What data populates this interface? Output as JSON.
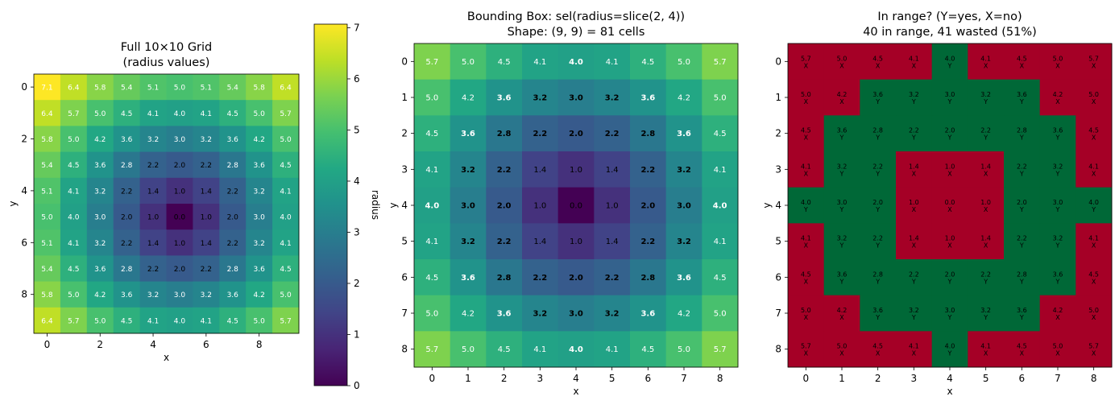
{
  "chart_data": [
    {
      "type": "heatmap",
      "title": "Full 10×10 Grid\n(radius values)",
      "xlabel": "x",
      "ylabel": "y",
      "colorbar_label": "radius",
      "xticks": [
        0,
        2,
        4,
        6,
        8
      ],
      "yticks": [
        0,
        2,
        4,
        6,
        8
      ],
      "colorbar_ticks": [
        0,
        1,
        2,
        3,
        4,
        5,
        6,
        7
      ],
      "colormap": "viridis",
      "vmin": 0,
      "vmax": 7.07,
      "values": [
        [
          "7.1",
          "6.4",
          "5.8",
          "5.4",
          "5.1",
          "5.0",
          "5.1",
          "5.4",
          "5.8",
          "6.4"
        ],
        [
          "6.4",
          "5.7",
          "5.0",
          "4.5",
          "4.1",
          "4.0",
          "4.1",
          "4.5",
          "5.0",
          "5.7"
        ],
        [
          "5.8",
          "5.0",
          "4.2",
          "3.6",
          "3.2",
          "3.0",
          "3.2",
          "3.6",
          "4.2",
          "5.0"
        ],
        [
          "5.4",
          "4.5",
          "3.6",
          "2.8",
          "2.2",
          "2.0",
          "2.2",
          "2.8",
          "3.6",
          "4.5"
        ],
        [
          "5.1",
          "4.1",
          "3.2",
          "2.2",
          "1.4",
          "1.0",
          "1.4",
          "2.2",
          "3.2",
          "4.1"
        ],
        [
          "5.0",
          "4.0",
          "3.0",
          "2.0",
          "1.0",
          "0.0",
          "1.0",
          "2.0",
          "3.0",
          "4.0"
        ],
        [
          "5.1",
          "4.1",
          "3.2",
          "2.2",
          "1.4",
          "1.0",
          "1.4",
          "2.2",
          "3.2",
          "4.1"
        ],
        [
          "5.4",
          "4.5",
          "3.6",
          "2.8",
          "2.2",
          "2.0",
          "2.2",
          "2.8",
          "3.6",
          "4.5"
        ],
        [
          "5.8",
          "5.0",
          "4.2",
          "3.6",
          "3.2",
          "3.0",
          "3.2",
          "3.6",
          "4.2",
          "5.0"
        ],
        [
          "6.4",
          "5.7",
          "5.0",
          "4.5",
          "4.1",
          "4.0",
          "4.1",
          "4.5",
          "5.0",
          "5.7"
        ]
      ]
    },
    {
      "type": "heatmap",
      "title": "Bounding Box: sel(radius=slice(2, 4))\nShape: (9, 9) = 81 cells",
      "xlabel": "x",
      "ylabel": "y",
      "xticks": [
        0,
        1,
        2,
        3,
        4,
        5,
        6,
        7,
        8
      ],
      "yticks": [
        0,
        1,
        2,
        3,
        4,
        5,
        6,
        7,
        8
      ],
      "colormap": "viridis",
      "vmin": 0,
      "vmax": 7.07,
      "values": [
        [
          "5.7",
          "5.0",
          "4.5",
          "4.1",
          "4.0",
          "4.1",
          "4.5",
          "5.0",
          "5.7"
        ],
        [
          "5.0",
          "4.2",
          "3.6",
          "3.2",
          "3.0",
          "3.2",
          "3.6",
          "4.2",
          "5.0"
        ],
        [
          "4.5",
          "3.6",
          "2.8",
          "2.2",
          "2.0",
          "2.2",
          "2.8",
          "3.6",
          "4.5"
        ],
        [
          "4.1",
          "3.2",
          "2.2",
          "1.4",
          "1.0",
          "1.4",
          "2.2",
          "3.2",
          "4.1"
        ],
        [
          "4.0",
          "3.0",
          "2.0",
          "1.0",
          "0.0",
          "1.0",
          "2.0",
          "3.0",
          "4.0"
        ],
        [
          "4.1",
          "3.2",
          "2.2",
          "1.4",
          "1.0",
          "1.4",
          "2.2",
          "3.2",
          "4.1"
        ],
        [
          "4.5",
          "3.6",
          "2.8",
          "2.2",
          "2.0",
          "2.2",
          "2.8",
          "3.6",
          "4.5"
        ],
        [
          "5.0",
          "4.2",
          "3.6",
          "3.2",
          "3.0",
          "3.2",
          "3.6",
          "4.2",
          "5.0"
        ],
        [
          "5.7",
          "5.0",
          "4.5",
          "4.1",
          "4.0",
          "4.1",
          "4.5",
          "5.0",
          "5.7"
        ]
      ]
    },
    {
      "type": "heatmap",
      "title": "In range? (Y=yes, X=no)\n40 in range, 41 wasted (51%)",
      "xlabel": "x",
      "ylabel": "y",
      "xticks": [
        0,
        1,
        2,
        3,
        4,
        5,
        6,
        7,
        8
      ],
      "yticks": [
        0,
        1,
        2,
        3,
        4,
        5,
        6,
        7,
        8
      ],
      "colors": {
        "in_range": "#006837",
        "out_of_range": "#a50026"
      },
      "in_range_marker": "Y",
      "out_of_range_marker": "X",
      "values": [
        [
          "5.7",
          "5.0",
          "4.5",
          "4.1",
          "4.0",
          "4.1",
          "4.5",
          "5.0",
          "5.7"
        ],
        [
          "5.0",
          "4.2",
          "3.6",
          "3.2",
          "3.0",
          "3.2",
          "3.6",
          "4.2",
          "5.0"
        ],
        [
          "4.5",
          "3.6",
          "2.8",
          "2.2",
          "2.0",
          "2.2",
          "2.8",
          "3.6",
          "4.5"
        ],
        [
          "4.1",
          "3.2",
          "2.2",
          "1.4",
          "1.0",
          "1.4",
          "2.2",
          "3.2",
          "4.1"
        ],
        [
          "4.0",
          "3.0",
          "2.0",
          "1.0",
          "0.0",
          "1.0",
          "2.0",
          "3.0",
          "4.0"
        ],
        [
          "4.1",
          "3.2",
          "2.2",
          "1.4",
          "1.0",
          "1.4",
          "2.2",
          "3.2",
          "4.1"
        ],
        [
          "4.5",
          "3.6",
          "2.8",
          "2.2",
          "2.0",
          "2.2",
          "2.8",
          "3.6",
          "4.5"
        ],
        [
          "5.0",
          "4.2",
          "3.6",
          "3.2",
          "3.0",
          "3.2",
          "3.6",
          "4.2",
          "5.0"
        ],
        [
          "5.7",
          "5.0",
          "4.5",
          "4.1",
          "4.0",
          "4.1",
          "4.5",
          "5.0",
          "5.7"
        ]
      ],
      "in_range": [
        [
          "X",
          "X",
          "X",
          "X",
          "Y",
          "X",
          "X",
          "X",
          "X"
        ],
        [
          "X",
          "X",
          "Y",
          "Y",
          "Y",
          "Y",
          "Y",
          "X",
          "X"
        ],
        [
          "X",
          "Y",
          "Y",
          "Y",
          "Y",
          "Y",
          "Y",
          "Y",
          "X"
        ],
        [
          "X",
          "Y",
          "Y",
          "X",
          "X",
          "X",
          "Y",
          "Y",
          "X"
        ],
        [
          "Y",
          "Y",
          "Y",
          "X",
          "X",
          "X",
          "Y",
          "Y",
          "Y"
        ],
        [
          "X",
          "Y",
          "Y",
          "X",
          "X",
          "X",
          "Y",
          "Y",
          "X"
        ],
        [
          "X",
          "Y",
          "Y",
          "Y",
          "Y",
          "Y",
          "Y",
          "Y",
          "X"
        ],
        [
          "X",
          "X",
          "Y",
          "Y",
          "Y",
          "Y",
          "Y",
          "X",
          "X"
        ],
        [
          "X",
          "X",
          "X",
          "X",
          "Y",
          "X",
          "X",
          "X",
          "X"
        ]
      ]
    }
  ]
}
